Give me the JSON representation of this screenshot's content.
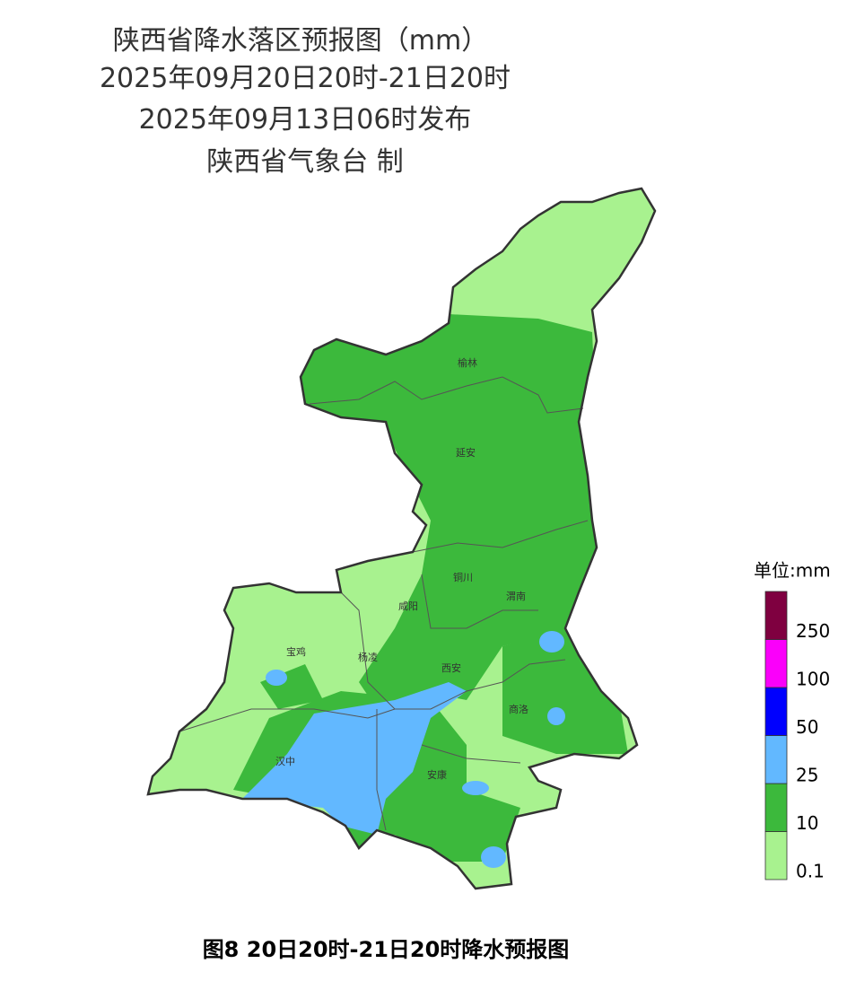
{
  "header": {
    "title": "陕西省降水落区预报图（mm）",
    "period": "2025年09月20日20时-21日20时",
    "issued": "2025年09月13日06时发布",
    "issuer": "陕西省气象台 制"
  },
  "map": {
    "cities": [
      "榆林",
      "延安",
      "铜川",
      "咸阳",
      "渭南",
      "宝鸡",
      "杨凌",
      "西安",
      "商洛",
      "汉中",
      "安康"
    ]
  },
  "legend": {
    "unit": "单位:mm",
    "levels": [
      0.1,
      10,
      25,
      50,
      100,
      250
    ],
    "colors": [
      "#a8f28f",
      "#3cb93c",
      "#62b8ff",
      "#0000fe",
      "#fa00fa",
      "#7f0040"
    ]
  },
  "caption": "图8  20日20时-21日20时降水预报图"
}
